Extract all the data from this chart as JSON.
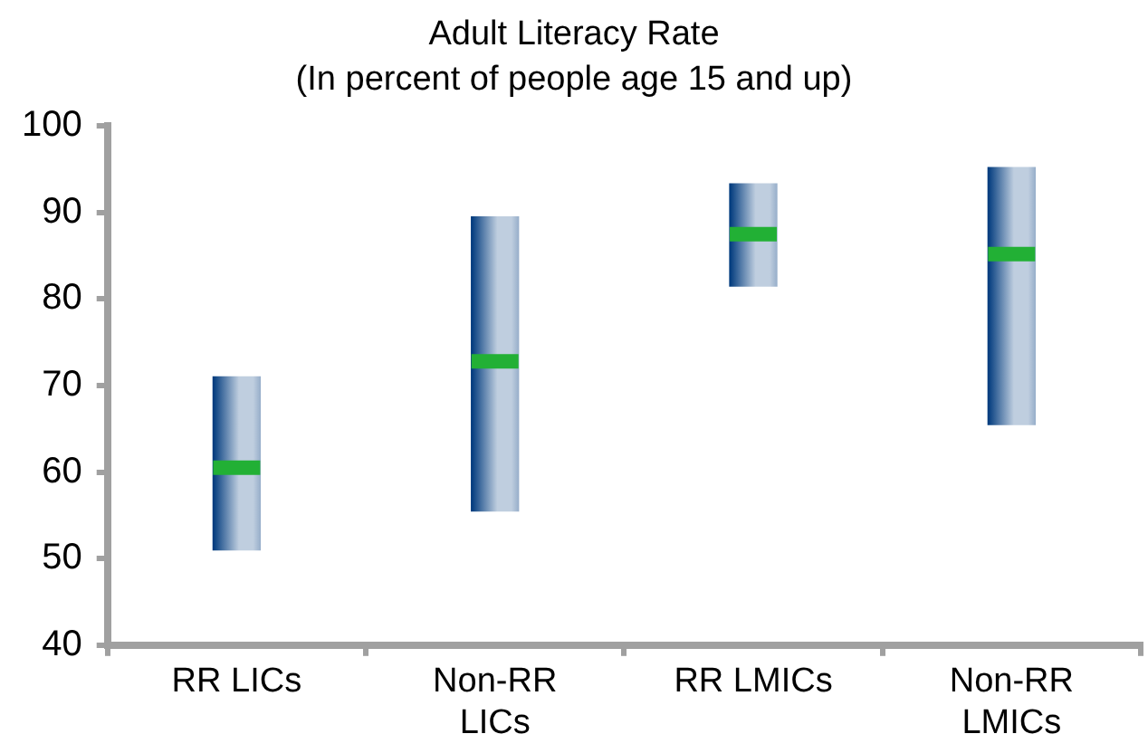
{
  "chart_data": {
    "type": "box",
    "title": "Adult Literacy Rate",
    "subtitle": "(In percent of people age 15 and up)",
    "categories": [
      "RR LICs",
      "Non-RR LICs",
      "RR LMICs",
      "Non-RR LMICs"
    ],
    "series": [
      {
        "color": "#003a7d",
        "boxes": [
          {
            "low": 51,
            "q1": 51,
            "median": 60.5,
            "q3": 71,
            "high": 71
          },
          {
            "low": 55.5,
            "q1": 55.5,
            "median": 72.8,
            "q3": 89.5,
            "high": 89.5
          },
          {
            "low": 81.5,
            "q1": 81.5,
            "median": 87.5,
            "q3": 93.3,
            "high": 93.3
          },
          {
            "low": 65.5,
            "q1": 65.5,
            "median": 85.2,
            "q3": 95.2,
            "high": 95.2
          }
        ]
      }
    ],
    "ylim": [
      40,
      100
    ],
    "yticks": [
      40,
      50,
      60,
      70,
      80,
      90,
      100
    ],
    "grid": false,
    "legend": false
  }
}
